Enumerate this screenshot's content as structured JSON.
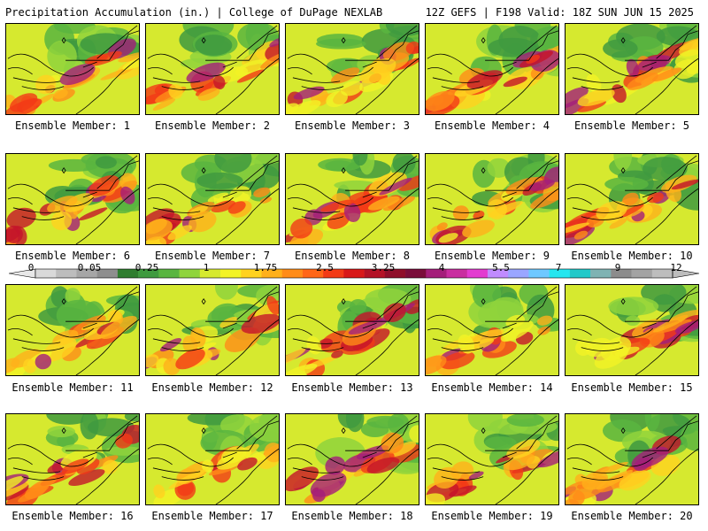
{
  "header": {
    "title_left": "Precipitation Accumulation (in.) | College of DuPage NEXLAB",
    "title_right": "12Z GEFS | F198 Valid: 18Z SUN JUN 15 2025"
  },
  "colorbar": {
    "labels": [
      "0",
      "0.05",
      "0.25",
      "1",
      "1.75",
      "2.5",
      "3.25",
      "4",
      "5.5",
      "7",
      "9",
      "12"
    ],
    "colors": [
      "#d9d9d9",
      "#bdbdbd",
      "#a6a6a6",
      "#8e8e8e",
      "#2f7d2f",
      "#3f9a3f",
      "#59b540",
      "#8fd43c",
      "#d6e92f",
      "#f3f325",
      "#ffd21f",
      "#ffb01a",
      "#ff8c18",
      "#ff6617",
      "#f23a16",
      "#d81818",
      "#b31225",
      "#8f0e2a",
      "#7a0d3a",
      "#a41e7a",
      "#c92da0",
      "#e33bd0",
      "#c08bff",
      "#9aa6ff",
      "#6ec8ff",
      "#24e6ef",
      "#22c9c9",
      "#7fb3b3",
      "#8c8c8c",
      "#a3a3a3",
      "#bdbdbd"
    ]
  },
  "panels": [
    {
      "label": "Ensemble Member: 1"
    },
    {
      "label": "Ensemble Member: 2"
    },
    {
      "label": "Ensemble Member: 3"
    },
    {
      "label": "Ensemble Member: 4"
    },
    {
      "label": "Ensemble Member: 5"
    },
    {
      "label": "Ensemble Member: 6"
    },
    {
      "label": "Ensemble Member: 7"
    },
    {
      "label": "Ensemble Member: 8"
    },
    {
      "label": "Ensemble Member: 9"
    },
    {
      "label": "Ensemble Member: 10"
    },
    {
      "label": "Ensemble Member: 11"
    },
    {
      "label": "Ensemble Member: 12"
    },
    {
      "label": "Ensemble Member: 13"
    },
    {
      "label": "Ensemble Member: 14"
    },
    {
      "label": "Ensemble Member: 15"
    },
    {
      "label": "Ensemble Member: 16"
    },
    {
      "label": "Ensemble Member: 17"
    },
    {
      "label": "Ensemble Member: 18"
    },
    {
      "label": "Ensemble Member: 19"
    },
    {
      "label": "Ensemble Member: 20"
    }
  ]
}
